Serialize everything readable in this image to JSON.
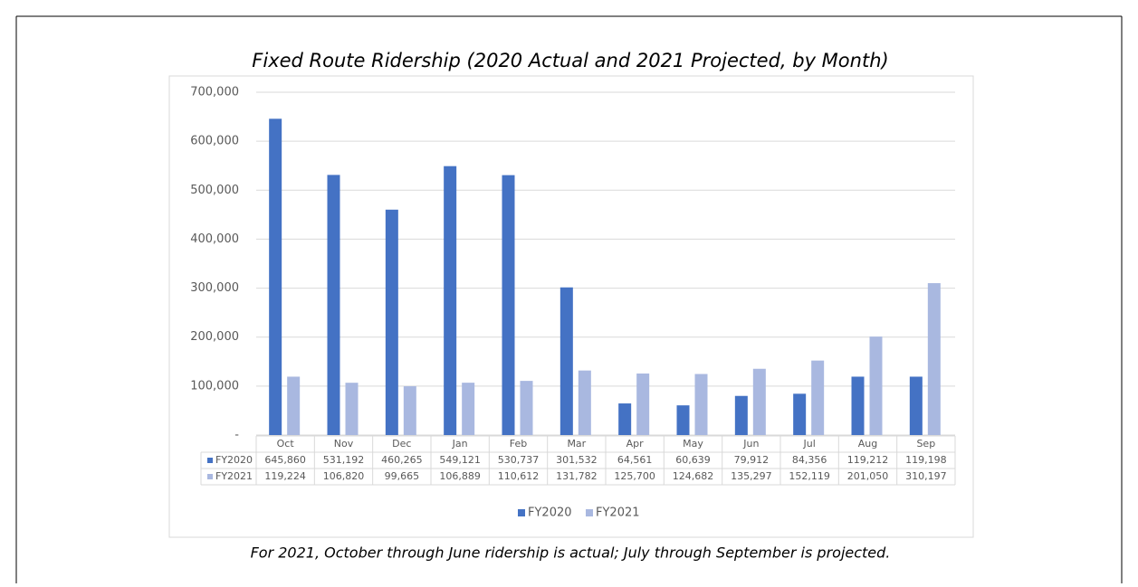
{
  "chart_data": {
    "type": "bar",
    "title": "Fixed Route Ridership (2020 Actual and 2021 Projected, by Month)",
    "categories": [
      "Oct",
      "Nov",
      "Dec",
      "Jan",
      "Feb",
      "Mar",
      "Apr",
      "May",
      "Jun",
      "Jul",
      "Aug",
      "Sep"
    ],
    "series": [
      {
        "name": "FY2020",
        "color": "#4472c4",
        "values": [
          645860,
          531192,
          460265,
          549121,
          530737,
          301532,
          64561,
          60639,
          79912,
          84356,
          119212,
          119198
        ],
        "value_labels": [
          "645,860",
          "531,192",
          "460,265",
          "549,121",
          "530,737",
          "301,532",
          "64,561",
          "60,639",
          "79,912",
          "84,356",
          "119,212",
          "119,198"
        ]
      },
      {
        "name": "FY2021",
        "color": "#a9b8e0",
        "values": [
          119224,
          106820,
          99665,
          106889,
          110612,
          131782,
          125700,
          124682,
          135297,
          152119,
          201050,
          310197
        ],
        "value_labels": [
          "119,224",
          "106,820",
          "99,665",
          "106,889",
          "110,612",
          "131,782",
          "125,700",
          "124,682",
          "135,297",
          "152,119",
          "201,050",
          "310,197"
        ]
      }
    ],
    "ylim": [
      0,
      700000
    ],
    "yticks": [
      {
        "value": 0,
        "label": "-"
      },
      {
        "value": 100000,
        "label": "100,000"
      },
      {
        "value": 200000,
        "label": "200,000"
      },
      {
        "value": 300000,
        "label": "300,000"
      },
      {
        "value": 400000,
        "label": "400,000"
      },
      {
        "value": 500000,
        "label": "500,000"
      },
      {
        "value": 600000,
        "label": "600,000"
      },
      {
        "value": 700000,
        "label": "700,000"
      }
    ],
    "grid": true,
    "legend": "bottom",
    "note": "For 2021, October through June ridership is actual; July through September is projected."
  }
}
